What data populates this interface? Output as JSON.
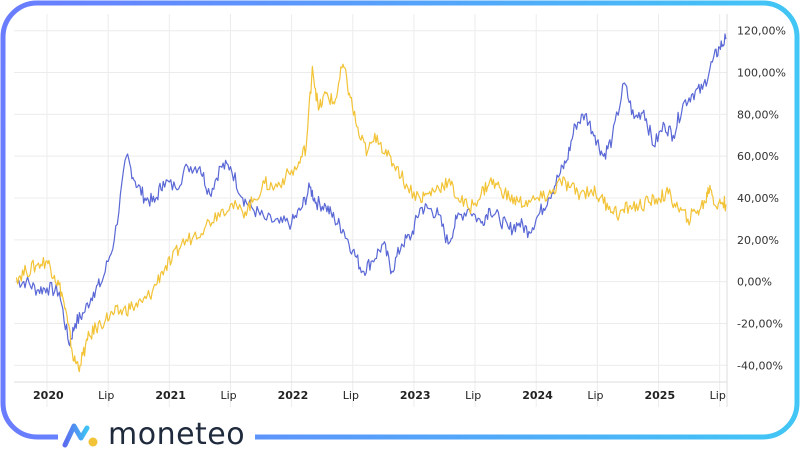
{
  "brand": {
    "name": "moneteo",
    "icon": "moneteo-logo-icon"
  },
  "colors": {
    "frame_gradient_start": "#6a7cff",
    "frame_gradient_end": "#41c6f5",
    "series_blue": "#5a68d6",
    "series_yellow": "#f2c336",
    "grid": "#ececec"
  },
  "chart_data": {
    "type": "line",
    "title": "",
    "xlabel": "",
    "ylabel": "",
    "ylim": [
      -48,
      128
    ],
    "y_ticks": [
      "120,00%",
      "100,00%",
      "80,00%",
      "60,00%",
      "40,00%",
      "20,00%",
      "0,00%",
      "-20,00%",
      "-40,00%"
    ],
    "y_tick_values": [
      120,
      100,
      80,
      60,
      40,
      20,
      0,
      -20,
      -40
    ],
    "x_ticks": [
      {
        "label": "2020",
        "x": 2020.0,
        "major": true
      },
      {
        "label": "Lip",
        "x": 2020.5,
        "major": false
      },
      {
        "label": "2021",
        "x": 2021.0,
        "major": true
      },
      {
        "label": "Lip",
        "x": 2021.5,
        "major": false
      },
      {
        "label": "2022",
        "x": 2022.0,
        "major": true
      },
      {
        "label": "Lip",
        "x": 2022.5,
        "major": false
      },
      {
        "label": "2023",
        "x": 2023.0,
        "major": true
      },
      {
        "label": "Lip",
        "x": 2023.5,
        "major": false
      },
      {
        "label": "2024",
        "x": 2024.0,
        "major": true
      },
      {
        "label": "Lip",
        "x": 2024.5,
        "major": false
      },
      {
        "label": "2025",
        "x": 2025.0,
        "major": true
      },
      {
        "label": "Lip",
        "x": 2025.5,
        "major": false
      }
    ],
    "xlim": [
      2019.73,
      2025.56
    ],
    "grid": true,
    "series": [
      {
        "color": "#5a68d6",
        "points": [
          [
            2019.75,
            0
          ],
          [
            2019.83,
            0
          ],
          [
            2019.92,
            -4
          ],
          [
            2020.0,
            -3
          ],
          [
            2020.1,
            -5
          ],
          [
            2020.18,
            -30
          ],
          [
            2020.23,
            -20
          ],
          [
            2020.3,
            -15
          ],
          [
            2020.38,
            -5
          ],
          [
            2020.45,
            0
          ],
          [
            2020.55,
            20
          ],
          [
            2020.65,
            60
          ],
          [
            2020.72,
            48
          ],
          [
            2020.8,
            40
          ],
          [
            2020.88,
            38
          ],
          [
            2020.95,
            48
          ],
          [
            2021.05,
            45
          ],
          [
            2021.15,
            55
          ],
          [
            2021.25,
            55
          ],
          [
            2021.33,
            42
          ],
          [
            2021.42,
            55
          ],
          [
            2021.5,
            55
          ],
          [
            2021.6,
            40
          ],
          [
            2021.68,
            35
          ],
          [
            2021.78,
            30
          ],
          [
            2021.9,
            28
          ],
          [
            2022.0,
            28
          ],
          [
            2022.08,
            35
          ],
          [
            2022.15,
            45
          ],
          [
            2022.2,
            38
          ],
          [
            2022.28,
            36
          ],
          [
            2022.35,
            30
          ],
          [
            2022.42,
            25
          ],
          [
            2022.5,
            15
          ],
          [
            2022.58,
            5
          ],
          [
            2022.66,
            10
          ],
          [
            2022.75,
            18
          ],
          [
            2022.82,
            5
          ],
          [
            2022.9,
            18
          ],
          [
            2022.98,
            22
          ],
          [
            2023.05,
            35
          ],
          [
            2023.12,
            35
          ],
          [
            2023.2,
            32
          ],
          [
            2023.28,
            18
          ],
          [
            2023.35,
            30
          ],
          [
            2023.45,
            35
          ],
          [
            2023.55,
            28
          ],
          [
            2023.62,
            35
          ],
          [
            2023.7,
            30
          ],
          [
            2023.78,
            25
          ],
          [
            2023.86,
            28
          ],
          [
            2023.94,
            24
          ],
          [
            2024.02,
            32
          ],
          [
            2024.1,
            40
          ],
          [
            2024.18,
            50
          ],
          [
            2024.25,
            58
          ],
          [
            2024.32,
            75
          ],
          [
            2024.4,
            80
          ],
          [
            2024.48,
            70
          ],
          [
            2024.55,
            60
          ],
          [
            2024.62,
            68
          ],
          [
            2024.72,
            95
          ],
          [
            2024.8,
            78
          ],
          [
            2024.88,
            82
          ],
          [
            2024.96,
            65
          ],
          [
            2025.05,
            75
          ],
          [
            2025.12,
            70
          ],
          [
            2025.2,
            85
          ],
          [
            2025.28,
            90
          ],
          [
            2025.36,
            92
          ],
          [
            2025.44,
            105
          ],
          [
            2025.5,
            112
          ],
          [
            2025.55,
            116
          ]
        ]
      },
      {
        "color": "#f2c336",
        "points": [
          [
            2019.75,
            2
          ],
          [
            2019.83,
            5
          ],
          [
            2019.92,
            8
          ],
          [
            2020.0,
            10
          ],
          [
            2020.06,
            3
          ],
          [
            2020.12,
            -5
          ],
          [
            2020.17,
            -20
          ],
          [
            2020.22,
            -38
          ],
          [
            2020.27,
            -40
          ],
          [
            2020.33,
            -28
          ],
          [
            2020.4,
            -22
          ],
          [
            2020.48,
            -18
          ],
          [
            2020.55,
            -15
          ],
          [
            2020.62,
            -14
          ],
          [
            2020.7,
            -12
          ],
          [
            2020.78,
            -10
          ],
          [
            2020.86,
            -5
          ],
          [
            2020.94,
            5
          ],
          [
            2021.02,
            10
          ],
          [
            2021.1,
            18
          ],
          [
            2021.2,
            22
          ],
          [
            2021.3,
            27
          ],
          [
            2021.4,
            33
          ],
          [
            2021.5,
            37
          ],
          [
            2021.6,
            33
          ],
          [
            2021.68,
            38
          ],
          [
            2021.78,
            47
          ],
          [
            2021.86,
            45
          ],
          [
            2021.95,
            50
          ],
          [
            2022.05,
            55
          ],
          [
            2022.12,
            65
          ],
          [
            2022.17,
            103
          ],
          [
            2022.22,
            82
          ],
          [
            2022.28,
            90
          ],
          [
            2022.35,
            85
          ],
          [
            2022.42,
            104
          ],
          [
            2022.48,
            88
          ],
          [
            2022.55,
            70
          ],
          [
            2022.62,
            62
          ],
          [
            2022.7,
            70
          ],
          [
            2022.78,
            60
          ],
          [
            2022.86,
            55
          ],
          [
            2022.95,
            45
          ],
          [
            2023.05,
            40
          ],
          [
            2023.12,
            42
          ],
          [
            2023.2,
            45
          ],
          [
            2023.28,
            48
          ],
          [
            2023.36,
            40
          ],
          [
            2023.45,
            35
          ],
          [
            2023.55,
            42
          ],
          [
            2023.62,
            48
          ],
          [
            2023.7,
            45
          ],
          [
            2023.78,
            40
          ],
          [
            2023.86,
            38
          ],
          [
            2023.95,
            38
          ],
          [
            2024.05,
            40
          ],
          [
            2024.12,
            42
          ],
          [
            2024.2,
            48
          ],
          [
            2024.28,
            45
          ],
          [
            2024.36,
            42
          ],
          [
            2024.45,
            44
          ],
          [
            2024.52,
            40
          ],
          [
            2024.6,
            36
          ],
          [
            2024.68,
            32
          ],
          [
            2024.76,
            36
          ],
          [
            2024.84,
            36
          ],
          [
            2024.92,
            38
          ],
          [
            2025.0,
            40
          ],
          [
            2025.08,
            42
          ],
          [
            2025.16,
            35
          ],
          [
            2025.24,
            30
          ],
          [
            2025.32,
            34
          ],
          [
            2025.38,
            38
          ],
          [
            2025.42,
            46
          ],
          [
            2025.47,
            36
          ],
          [
            2025.52,
            38
          ],
          [
            2025.55,
            37
          ]
        ]
      }
    ]
  }
}
